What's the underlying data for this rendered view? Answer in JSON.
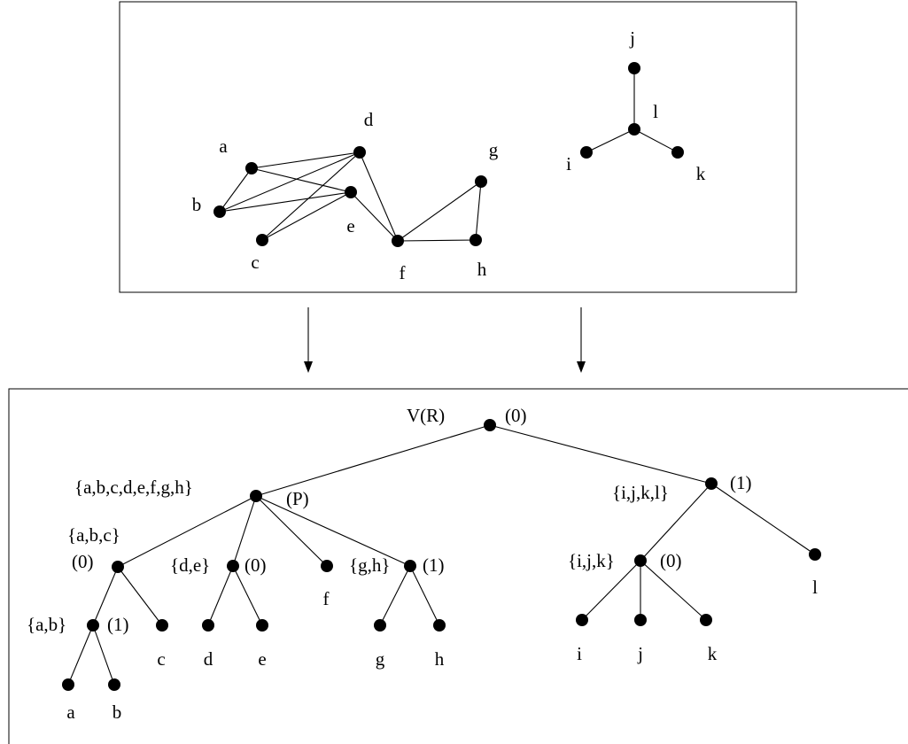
{
  "graph": {
    "nodes": [
      {
        "id": "a",
        "label": "a"
      },
      {
        "id": "b",
        "label": "b"
      },
      {
        "id": "c",
        "label": "c"
      },
      {
        "id": "d",
        "label": "d"
      },
      {
        "id": "e",
        "label": "e"
      },
      {
        "id": "f",
        "label": "f"
      },
      {
        "id": "g",
        "label": "g"
      },
      {
        "id": "h",
        "label": "h"
      },
      {
        "id": "i",
        "label": "i"
      },
      {
        "id": "j",
        "label": "j"
      },
      {
        "id": "k",
        "label": "k"
      },
      {
        "id": "l",
        "label": "l"
      }
    ],
    "edges": [
      [
        "a",
        "b"
      ],
      [
        "a",
        "d"
      ],
      [
        "a",
        "e"
      ],
      [
        "b",
        "d"
      ],
      [
        "b",
        "e"
      ],
      [
        "c",
        "d"
      ],
      [
        "c",
        "e"
      ],
      [
        "d",
        "f"
      ],
      [
        "e",
        "f"
      ],
      [
        "f",
        "g"
      ],
      [
        "f",
        "h"
      ],
      [
        "g",
        "h"
      ],
      [
        "l",
        "j"
      ],
      [
        "l",
        "i"
      ],
      [
        "l",
        "k"
      ]
    ]
  },
  "tree": {
    "nodes": [
      {
        "id": "root",
        "set_label": "V(R)",
        "type_label": "(0)"
      },
      {
        "id": "A",
        "set_label": "{a,b,c,d,e,f,g,h}",
        "type_label": "(P)"
      },
      {
        "id": "B",
        "set_label": "{i,j,k,l}",
        "type_label": "(1)"
      },
      {
        "id": "abc",
        "set_label": "{a,b,c}",
        "type_label": "(0)"
      },
      {
        "id": "de",
        "set_label": "{d,e}",
        "type_label": "(0)"
      },
      {
        "id": "tf",
        "set_label": "f",
        "type_label": ""
      },
      {
        "id": "gh",
        "set_label": "{g,h}",
        "type_label": "(1)"
      },
      {
        "id": "ijk",
        "set_label": "{i,j,k}",
        "type_label": "(0)"
      },
      {
        "id": "tl",
        "set_label": "l",
        "type_label": ""
      },
      {
        "id": "ab",
        "set_label": "{a,b}",
        "type_label": "(1)"
      },
      {
        "id": "tc",
        "set_label": "c",
        "type_label": ""
      },
      {
        "id": "td",
        "set_label": "d",
        "type_label": ""
      },
      {
        "id": "te",
        "set_label": "e",
        "type_label": ""
      },
      {
        "id": "tg",
        "set_label": "g",
        "type_label": ""
      },
      {
        "id": "th",
        "set_label": "h",
        "type_label": ""
      },
      {
        "id": "ti",
        "set_label": "i",
        "type_label": ""
      },
      {
        "id": "tj",
        "set_label": "j",
        "type_label": ""
      },
      {
        "id": "tk",
        "set_label": "k",
        "type_label": ""
      },
      {
        "id": "ta",
        "set_label": "a",
        "type_label": ""
      },
      {
        "id": "tb",
        "set_label": "b",
        "type_label": ""
      }
    ],
    "edges": [
      [
        "root",
        "A"
      ],
      [
        "root",
        "B"
      ],
      [
        "A",
        "abc"
      ],
      [
        "A",
        "de"
      ],
      [
        "A",
        "tf"
      ],
      [
        "A",
        "gh"
      ],
      [
        "B",
        "ijk"
      ],
      [
        "B",
        "tl"
      ],
      [
        "abc",
        "ab"
      ],
      [
        "abc",
        "tc"
      ],
      [
        "de",
        "td"
      ],
      [
        "de",
        "te"
      ],
      [
        "gh",
        "tg"
      ],
      [
        "gh",
        "th"
      ],
      [
        "ijk",
        "ti"
      ],
      [
        "ijk",
        "tj"
      ],
      [
        "ijk",
        "tk"
      ],
      [
        "ab",
        "ta"
      ],
      [
        "ab",
        "tb"
      ]
    ]
  }
}
